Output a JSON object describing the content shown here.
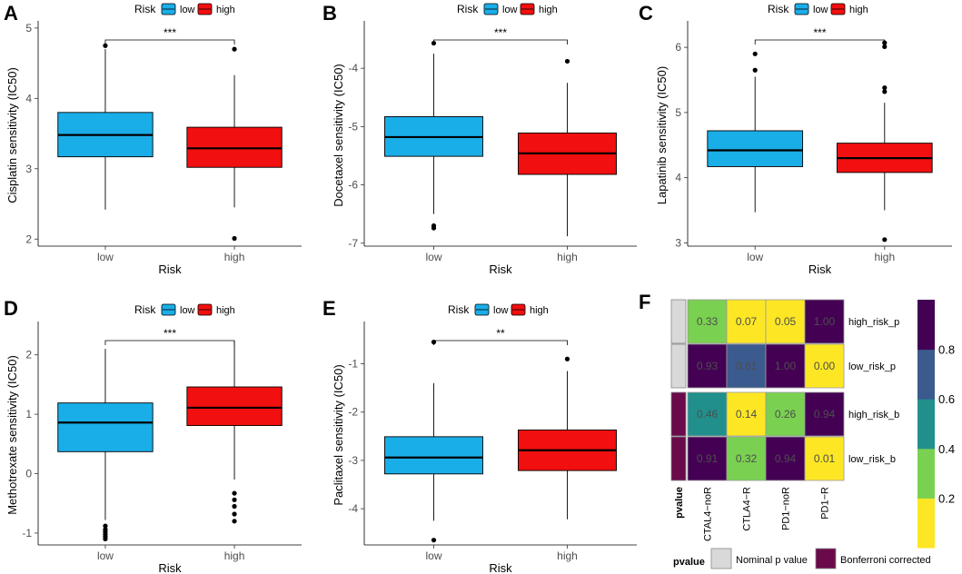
{
  "colors": {
    "low": "#1AAEE8",
    "high": "#F20F0F",
    "hm_dark": "#440154",
    "hm_blue": "#3B5A8E",
    "hm_teal": "#21908C",
    "hm_green": "#7AD151",
    "hm_yellow": "#FDE725",
    "nominal": "#D9D9D9",
    "bonferroni": "#6A0A4A"
  },
  "chart_data": [
    {
      "panel": "A",
      "type": "box",
      "title": "",
      "legend_title": "Risk",
      "legend_items": [
        "low",
        "high"
      ],
      "xlabel": "Risk",
      "ylabel": "Cisplatin sensitivity (IC50)",
      "categories": [
        "low",
        "high"
      ],
      "ylim": [
        1.9,
        5.05
      ],
      "yticks": [
        2,
        3,
        4,
        5
      ],
      "ytick_labels": [
        "2",
        "3",
        "4",
        "5"
      ],
      "boxes": [
        {
          "group": "low",
          "q1": 3.17,
          "median": 3.48,
          "q3": 3.8,
          "whisker_low": 2.42,
          "whisker_high": 4.7,
          "outliers": [
            4.75
          ]
        },
        {
          "group": "high",
          "q1": 3.02,
          "median": 3.29,
          "q3": 3.59,
          "whisker_low": 2.45,
          "whisker_high": 4.33,
          "outliers": [
            4.7,
            2.01
          ]
        }
      ],
      "significance": "***"
    },
    {
      "panel": "B",
      "type": "box",
      "legend_title": "Risk",
      "legend_items": [
        "low",
        "high"
      ],
      "xlabel": "Risk",
      "ylabel": "Docetaxel sensitivity (IC50)",
      "categories": [
        "low",
        "high"
      ],
      "ylim": [
        -7.05,
        -3.25
      ],
      "yticks": [
        -7,
        -6,
        -5,
        -4
      ],
      "ytick_labels": [
        "-7",
        "-6",
        "-5",
        "-4"
      ],
      "boxes": [
        {
          "group": "low",
          "q1": -5.51,
          "median": -5.18,
          "q3": -4.83,
          "whisker_low": -6.5,
          "whisker_high": -3.75,
          "outliers": [
            -3.57,
            -6.7,
            -6.74
          ]
        },
        {
          "group": "high",
          "q1": -5.82,
          "median": -5.46,
          "q3": -5.11,
          "whisker_low": -6.88,
          "whisker_high": -4.25,
          "outliers": [
            -3.88
          ]
        }
      ],
      "significance": "***"
    },
    {
      "panel": "C",
      "type": "box",
      "legend_title": "Risk",
      "legend_items": [
        "low",
        "high"
      ],
      "xlabel": "Risk",
      "ylabel": "Lapatinib sensitivity (IC50)",
      "categories": [
        "low",
        "high"
      ],
      "ylim": [
        2.95,
        6.35
      ],
      "yticks": [
        3,
        4,
        5,
        6
      ],
      "ytick_labels": [
        "3",
        "4",
        "5",
        "6"
      ],
      "boxes": [
        {
          "group": "low",
          "q1": 4.17,
          "median": 4.42,
          "q3": 4.72,
          "whisker_low": 3.47,
          "whisker_high": 5.55,
          "outliers": [
            5.9,
            5.65
          ]
        },
        {
          "group": "high",
          "q1": 4.08,
          "median": 4.3,
          "q3": 4.53,
          "whisker_low": 3.5,
          "whisker_high": 5.15,
          "outliers": [
            6.07,
            6.01,
            5.38,
            5.32,
            3.05
          ]
        }
      ],
      "significance": "***"
    },
    {
      "panel": "D",
      "type": "box",
      "legend_title": "Risk",
      "legend_items": [
        "low",
        "high"
      ],
      "xlabel": "Risk",
      "ylabel": "Methotrexate sensitivity (IC50)",
      "categories": [
        "low",
        "high"
      ],
      "ylim": [
        -1.2,
        2.5
      ],
      "yticks": [
        -1,
        0,
        1,
        2
      ],
      "ytick_labels": [
        "-1",
        "0",
        "1",
        "2"
      ],
      "boxes": [
        {
          "group": "low",
          "q1": 0.37,
          "median": 0.86,
          "q3": 1.19,
          "whisker_low": -0.78,
          "whisker_high": 2.1,
          "outliers": [
            -0.88,
            -0.94,
            -0.98,
            -1.02,
            -1.06,
            -1.1
          ]
        },
        {
          "group": "high",
          "q1": 0.81,
          "median": 1.11,
          "q3": 1.46,
          "whisker_low": -0.1,
          "whisker_high": 2.23,
          "outliers": [
            -0.33,
            -0.44,
            -0.55,
            -0.68,
            -0.8
          ]
        }
      ],
      "significance": "***"
    },
    {
      "panel": "E",
      "type": "box",
      "legend_title": "Risk",
      "legend_items": [
        "low",
        "high"
      ],
      "xlabel": "Risk",
      "ylabel": "Paclitaxel sensitivity (IC50)",
      "categories": [
        "low",
        "high"
      ],
      "ylim": [
        -4.75,
        -0.2
      ],
      "yticks": [
        -4,
        -3,
        -2,
        -1
      ],
      "ytick_labels": [
        "-4",
        "-3",
        "-2",
        "-1"
      ],
      "boxes": [
        {
          "group": "low",
          "q1": -3.28,
          "median": -2.94,
          "q3": -2.51,
          "whisker_low": -4.25,
          "whisker_high": -1.4,
          "outliers": [
            -0.55,
            -4.65
          ]
        },
        {
          "group": "high",
          "q1": -3.21,
          "median": -2.79,
          "q3": -2.37,
          "whisker_low": -4.22,
          "whisker_high": -1.15,
          "outliers": [
            -0.9
          ]
        }
      ],
      "significance": "**"
    },
    {
      "panel": "F",
      "type": "heatmap",
      "columns": [
        "CTAL4−noR",
        "CTLA4−R",
        "PD1−noR",
        "PD1−R"
      ],
      "rows": [
        "high_risk_p",
        "low_risk_p",
        "high_risk_b",
        "low_risk_b"
      ],
      "values": [
        [
          0.33,
          0.07,
          0.05,
          1.0
        ],
        [
          0.93,
          0.61,
          1.0,
          0.0
        ],
        [
          0.46,
          0.14,
          0.26,
          0.94
        ],
        [
          0.91,
          0.32,
          0.94,
          0.01
        ]
      ],
      "value_labels": [
        [
          "0.33",
          "0.07",
          "0.05",
          "1.00"
        ],
        [
          "0.93",
          "0.61",
          "1.00",
          "0.00"
        ],
        [
          "0.46",
          "0.14",
          "0.26",
          "0.94"
        ],
        [
          "0.91",
          "0.32",
          "0.94",
          "0.01"
        ]
      ],
      "row_annotation_title": "pvalue",
      "row_groups": [
        "Nominal p value",
        "Nominal p value",
        "Bonferroni corrected",
        "Bonferroni corrected"
      ],
      "colorbar_ticks": [
        "0.8",
        "0.6",
        "0.4",
        "0.2"
      ],
      "colorbar_tick_values": [
        0.8,
        0.6,
        0.4,
        0.2
      ],
      "colorbar_range": [
        0,
        1
      ],
      "bottom_legend_title": "pvalue",
      "bottom_legend_items": [
        "Nominal p value",
        "Bonferroni corrected"
      ]
    }
  ]
}
